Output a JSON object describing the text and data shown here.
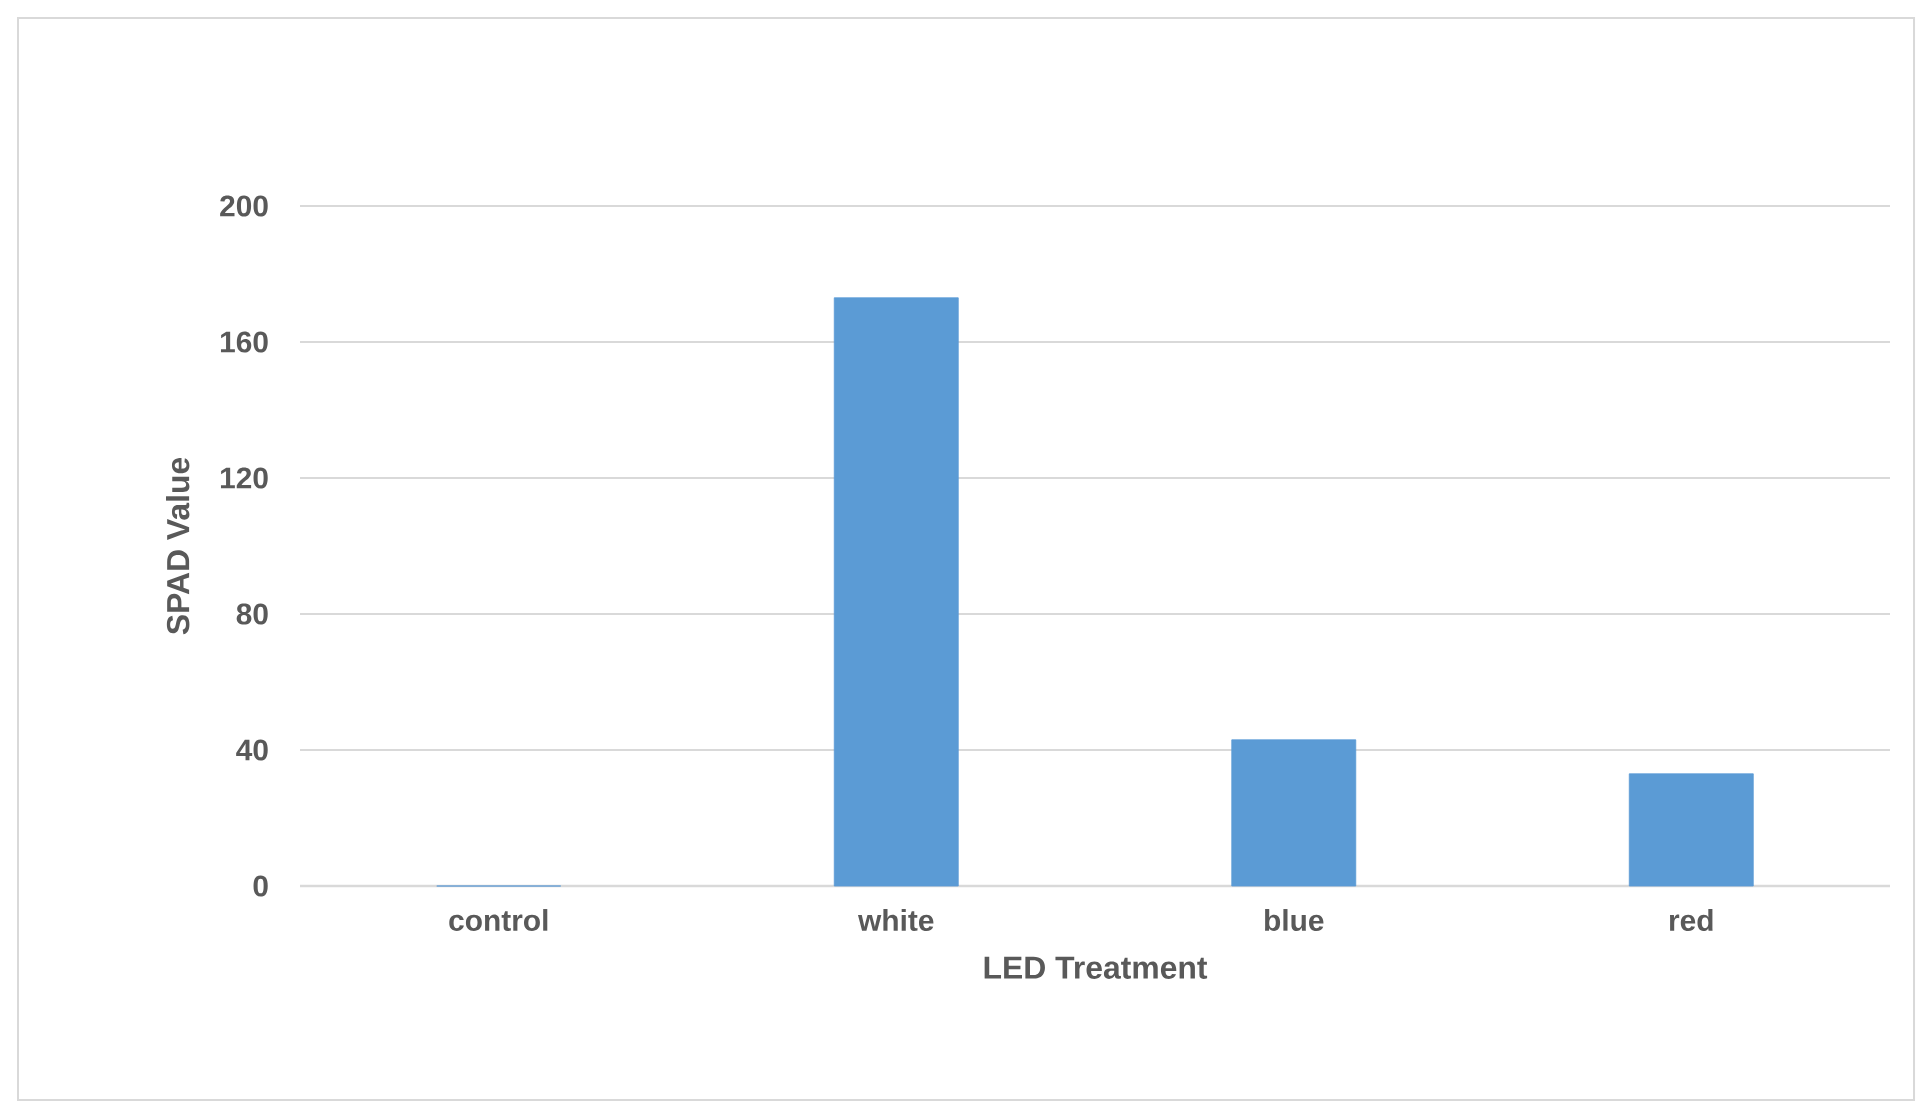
{
  "chart_data": {
    "type": "bar",
    "xlabel": "LED Treatment",
    "ylabel": "SPAD Value",
    "categories": [
      "control",
      "white",
      "blue",
      "red"
    ],
    "values": [
      0,
      173,
      43,
      33
    ],
    "color": "#5b9bd5",
    "ylim": [
      0,
      200
    ],
    "yticks": [
      0,
      40,
      80,
      120,
      160,
      200
    ],
    "grid": "y"
  }
}
